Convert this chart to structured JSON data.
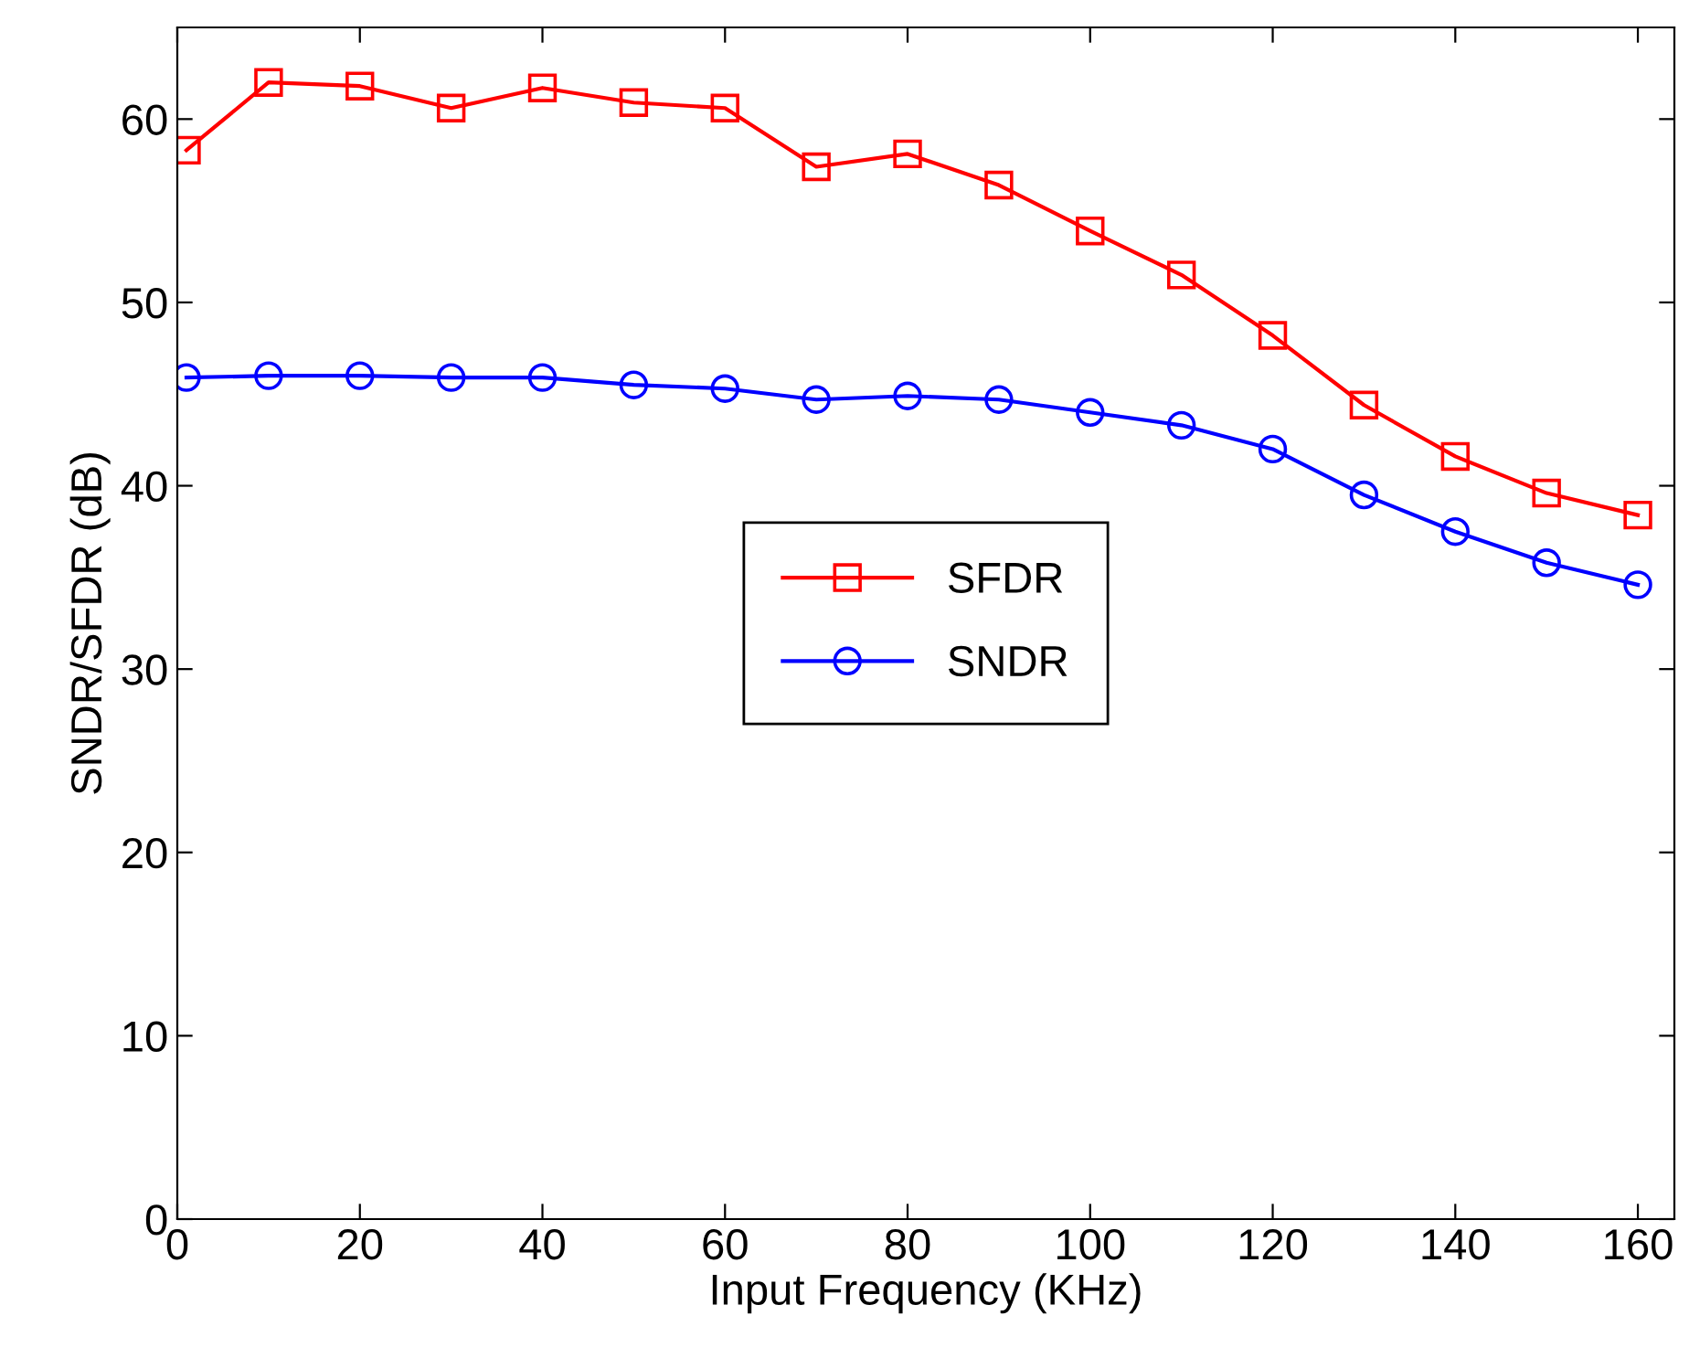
{
  "chart_data": {
    "type": "line",
    "xlabel": "Input Frequency (KHz)",
    "ylabel": "SNDR/SFDR (dB)",
    "x": [
      1,
      10,
      20,
      30,
      40,
      50,
      60,
      70,
      80,
      90,
      100,
      110,
      120,
      130,
      140,
      150,
      160
    ],
    "series": [
      {
        "name": "SFDR",
        "color": "#ff0000",
        "marker": "square",
        "values": [
          58.3,
          62.0,
          61.8,
          60.6,
          61.7,
          60.9,
          60.6,
          57.4,
          58.1,
          56.4,
          53.9,
          51.5,
          48.2,
          44.4,
          41.6,
          39.6,
          38.4
        ]
      },
      {
        "name": "SNDR",
        "color": "#0000ff",
        "marker": "circle",
        "values": [
          45.9,
          46.0,
          46.0,
          45.9,
          45.9,
          45.5,
          45.3,
          44.7,
          44.9,
          44.7,
          44.0,
          43.3,
          42.0,
          39.5,
          37.5,
          35.8,
          34.6
        ]
      }
    ],
    "xlim": [
      0,
      164
    ],
    "xticks": [
      0,
      20,
      40,
      60,
      80,
      100,
      120,
      140,
      160
    ],
    "ylim": [
      0,
      65
    ],
    "yticks": [
      0,
      10,
      20,
      30,
      40,
      50,
      60
    ],
    "grid": false,
    "legend": "center",
    "line_style": "solid"
  }
}
